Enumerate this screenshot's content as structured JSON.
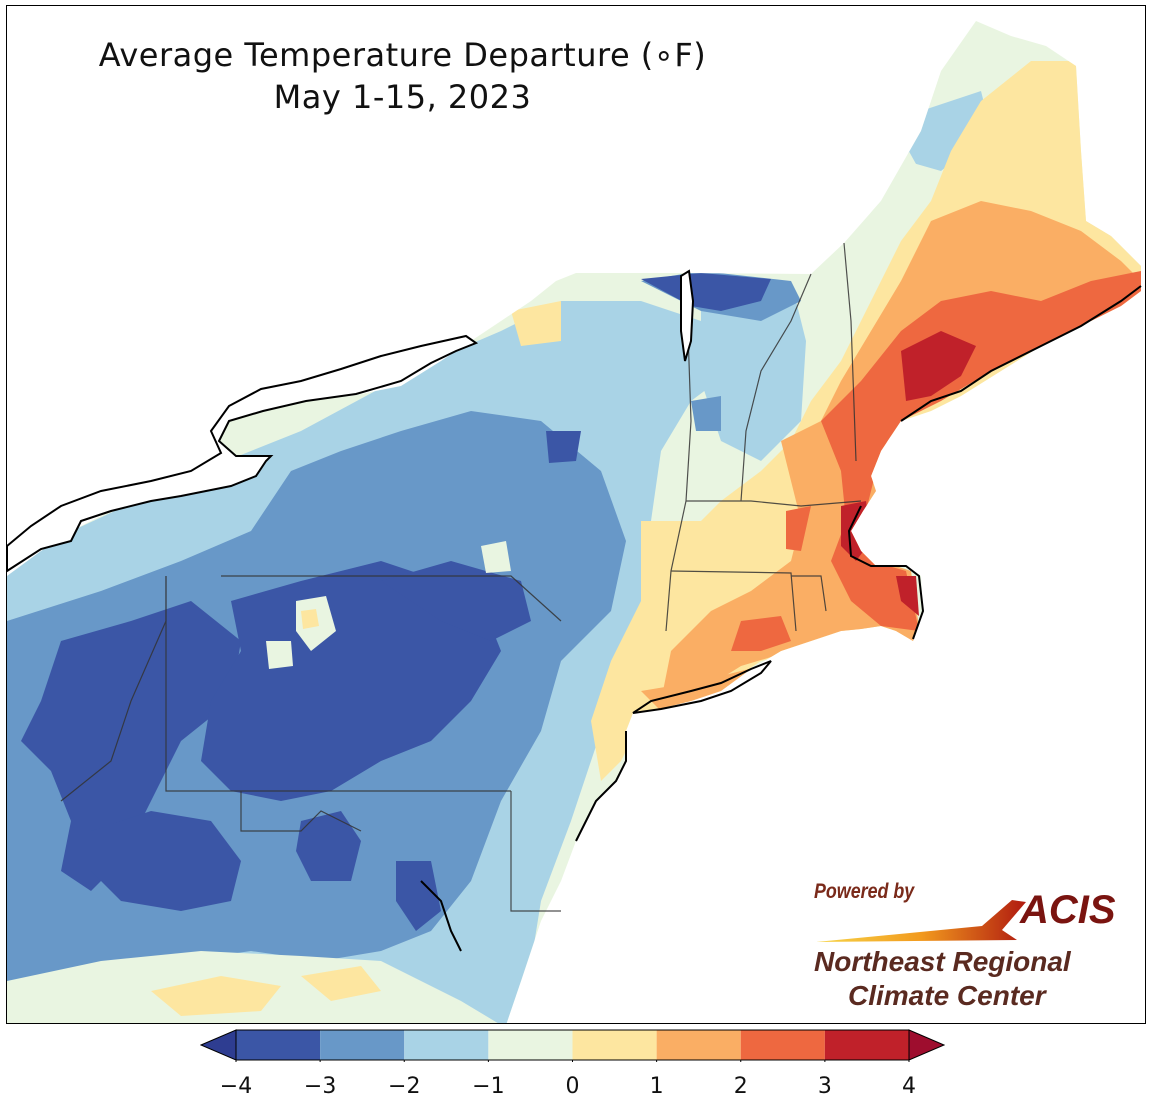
{
  "title": {
    "line1": "Average Temperature Departure (∘F)",
    "line2": "May 1-15, 2023"
  },
  "logo": {
    "powered_by": "Powered by",
    "acis": "ACIS",
    "org_line1": "Northeast Regional",
    "org_line2": "Climate Center"
  },
  "colorbar": {
    "extend": "both",
    "ticks": [
      "−4",
      "−3",
      "−2",
      "−1",
      "0",
      "1",
      "2",
      "3",
      "4"
    ],
    "bins": [
      {
        "range": [
          -4,
          -3
        ],
        "color": "#3b56a6"
      },
      {
        "range": [
          -3,
          -2
        ],
        "color": "#6898c8"
      },
      {
        "range": [
          -2,
          -1
        ],
        "color": "#a9d3e6"
      },
      {
        "range": [
          -1,
          0
        ],
        "color": "#e9f5e1"
      },
      {
        "range": [
          0,
          1
        ],
        "color": "#fde6a0"
      },
      {
        "range": [
          1,
          2
        ],
        "color": "#faae64"
      },
      {
        "range": [
          2,
          3
        ],
        "color": "#ee6840"
      },
      {
        "range": [
          3,
          4
        ],
        "color": "#c0212a"
      }
    ],
    "under_color": "#2e3d91",
    "over_color": "#9e0d2e"
  },
  "map": {
    "projection_region": "Northeast US",
    "background": "#ffffff",
    "outline_color": "#000000"
  }
}
